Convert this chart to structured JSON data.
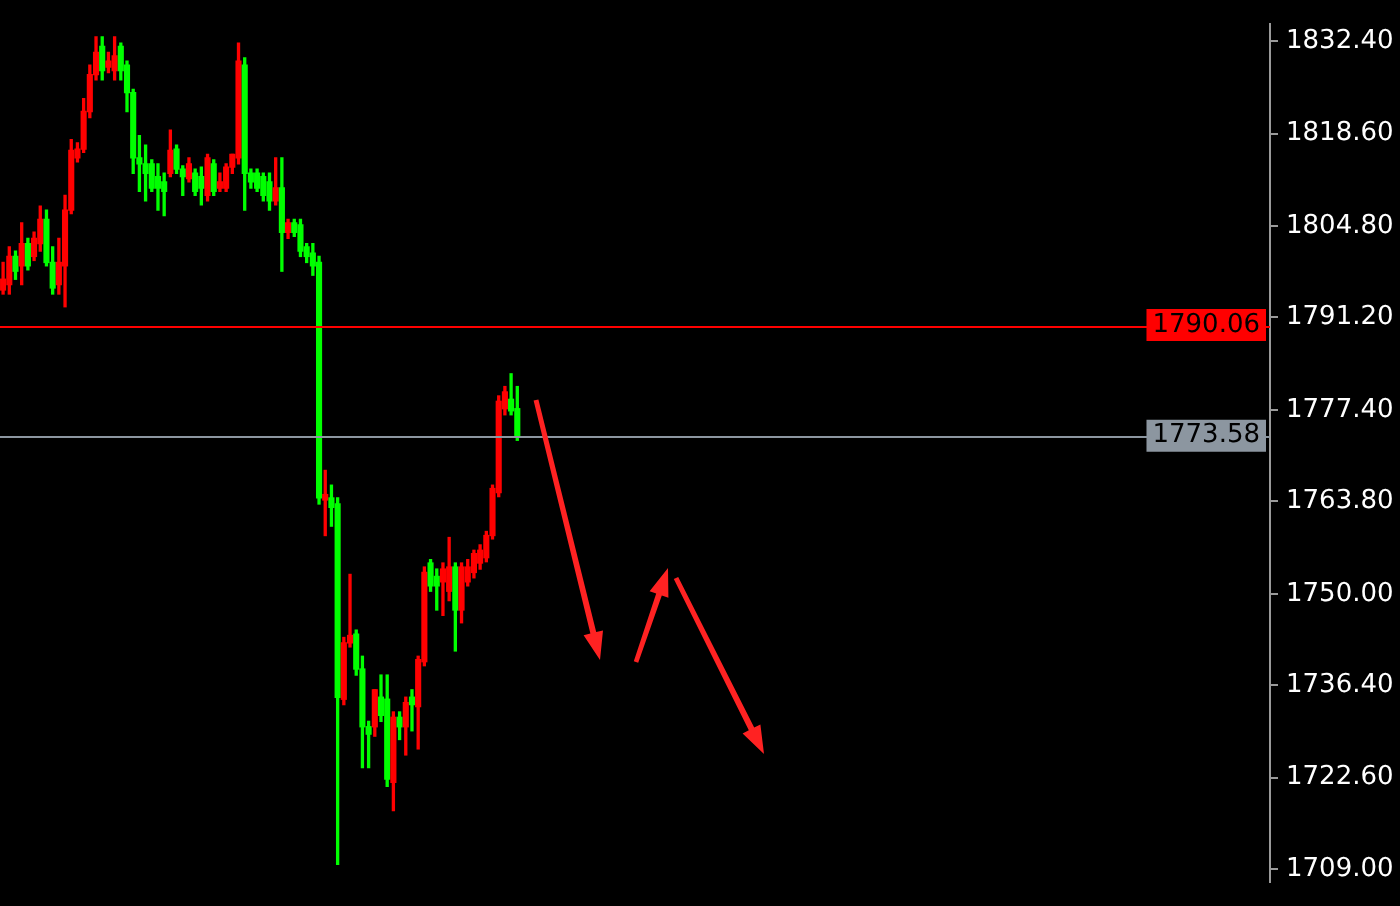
{
  "chart_data": {
    "type": "candlestick",
    "categories": [
      null,
      null,
      null,
      null,
      null,
      null,
      null,
      null,
      null,
      null,
      null,
      null,
      null,
      null,
      null,
      null,
      null,
      null,
      null,
      null,
      null,
      null,
      null,
      null,
      null,
      null,
      null,
      null,
      null,
      null,
      null,
      null,
      null,
      null,
      null,
      null,
      null,
      null,
      null,
      null,
      null,
      null,
      null,
      null,
      null,
      null,
      null,
      null,
      null,
      null,
      null,
      null,
      null,
      null,
      null,
      null,
      null,
      null,
      null,
      null,
      null,
      null,
      null,
      null,
      null,
      null,
      null,
      null,
      null,
      null,
      null,
      null,
      null,
      null,
      null,
      null,
      null,
      null,
      null,
      null,
      null,
      null,
      null,
      null,
      null,
      null,
      null,
      null,
      null,
      null,
      null,
      null,
      null,
      null,
      null,
      null,
      null,
      null,
      null,
      null,
      null,
      null,
      null,
      null,
      null,
      null,
      null,
      null,
      null,
      null,
      null,
      null,
      null,
      null,
      null,
      null,
      null,
      null,
      null,
      null,
      null,
      null,
      null,
      null,
      null,
      null,
      null,
      null,
      null,
      null,
      null,
      null,
      null,
      null,
      null,
      null,
      null,
      null,
      null,
      null,
      null,
      null,
      null,
      null,
      null,
      null,
      null,
      null,
      null,
      null,
      null,
      null,
      null,
      null,
      null,
      null,
      null,
      null,
      null,
      null,
      null,
      null,
      null,
      null,
      null,
      null,
      null,
      null,
      null,
      null,
      null,
      null,
      null,
      null,
      null,
      null,
      null,
      null,
      null,
      null,
      null,
      null,
      null,
      null,
      null,
      null,
      null,
      null,
      null,
      null,
      null,
      null,
      null,
      null,
      null,
      null,
      null,
      null,
      null,
      null,
      null,
      null,
      null,
      null,
      null
    ],
    "ohlc": [
      [
        1795.3,
        1799.4,
        1794.7,
        1796.9
      ],
      [
        1796.1,
        1801.7,
        1794.7,
        1800.3
      ],
      [
        1800.3,
        1801.1,
        1796.9,
        1798.1
      ],
      [
        1798.9,
        1805.3,
        1796.1,
        1802.2
      ],
      [
        1802.2,
        1803.0,
        1798.3,
        1798.9
      ],
      [
        1800.3,
        1803.9,
        1799.7,
        1803.0
      ],
      [
        1802.2,
        1807.8,
        1801.1,
        1805.8
      ],
      [
        1805.8,
        1807.2,
        1798.9,
        1799.4
      ],
      [
        1799.4,
        1801.7,
        1794.7,
        1795.6
      ],
      [
        1796.1,
        1803.0,
        1794.7,
        1799.4
      ],
      [
        1798.9,
        1809.4,
        1792.8,
        1807.2
      ],
      [
        1807.2,
        1817.7,
        1806.7,
        1816.1
      ],
      [
        1815.0,
        1817.2,
        1814.4,
        1816.3
      ],
      [
        1816.3,
        1823.8,
        1815.8,
        1821.9
      ],
      [
        1821.9,
        1828.8,
        1821.0,
        1827.4
      ],
      [
        1827.4,
        1833.0,
        1826.6,
        1830.7
      ],
      [
        1831.6,
        1833.0,
        1826.6,
        1828.0
      ],
      [
        1828.5,
        1830.7,
        1827.7,
        1829.4
      ],
      [
        1828.0,
        1833.0,
        1826.6,
        1830.2
      ],
      [
        1831.6,
        1832.1,
        1826.6,
        1828.0
      ],
      [
        1828.8,
        1829.4,
        1821.9,
        1824.7
      ],
      [
        1824.7,
        1825.2,
        1812.7,
        1815.0
      ],
      [
        1815.0,
        1818.3,
        1810.0,
        1814.1
      ],
      [
        1814.1,
        1816.9,
        1808.6,
        1812.7
      ],
      [
        1814.1,
        1814.7,
        1810.0,
        1810.5
      ],
      [
        1812.2,
        1814.1,
        1807.2,
        1810.5
      ],
      [
        1811.4,
        1812.7,
        1806.4,
        1810.0
      ],
      [
        1812.7,
        1819.1,
        1812.2,
        1816.1
      ],
      [
        1816.3,
        1816.9,
        1812.7,
        1813.3
      ],
      [
        1813.3,
        1813.8,
        1809.4,
        1812.2
      ],
      [
        1811.9,
        1815.0,
        1811.4,
        1814.1
      ],
      [
        1812.7,
        1813.3,
        1809.4,
        1810.0
      ],
      [
        1812.2,
        1813.6,
        1808.0,
        1810.5
      ],
      [
        1809.4,
        1815.5,
        1808.6,
        1815.0
      ],
      [
        1814.1,
        1814.7,
        1809.4,
        1810.0
      ],
      [
        1810.5,
        1812.7,
        1810.0,
        1811.4
      ],
      [
        1810.5,
        1814.1,
        1810.0,
        1813.6
      ],
      [
        1813.6,
        1815.5,
        1812.7,
        1815.5
      ],
      [
        1815.0,
        1832.1,
        1814.1,
        1829.4
      ],
      [
        1828.8,
        1829.9,
        1807.2,
        1812.7
      ],
      [
        1812.7,
        1813.3,
        1810.5,
        1811.4
      ],
      [
        1812.7,
        1813.3,
        1810.0,
        1810.5
      ],
      [
        1812.2,
        1812.7,
        1808.6,
        1809.4
      ],
      [
        1811.4,
        1812.7,
        1807.2,
        1808.6
      ],
      [
        1808.6,
        1815.0,
        1808.0,
        1810.5
      ],
      [
        1810.5,
        1815.0,
        1798.1,
        1803.9
      ],
      [
        1803.9,
        1805.8,
        1803.0,
        1805.3
      ],
      [
        1805.3,
        1805.8,
        1803.3,
        1803.9
      ],
      [
        1805.0,
        1805.8,
        1800.3,
        1801.1
      ],
      [
        1801.7,
        1802.2,
        1799.4,
        1800.3
      ],
      [
        1800.8,
        1802.2,
        1797.5,
        1798.9
      ],
      [
        1799.4,
        1800.3,
        1763.4,
        1764.3
      ],
      [
        1764.0,
        1768.4,
        1758.7,
        1764.8
      ],
      [
        1764.3,
        1766.2,
        1760.1,
        1762.9
      ],
      [
        1763.4,
        1764.3,
        1709.7,
        1734.6
      ],
      [
        1734.3,
        1743.5,
        1733.5,
        1742.7
      ],
      [
        1742.7,
        1752.9,
        1742.1,
        1743.8
      ],
      [
        1744.0,
        1744.6,
        1737.9,
        1738.8
      ],
      [
        1738.8,
        1740.7,
        1724.1,
        1730.2
      ],
      [
        1730.2,
        1731.0,
        1724.1,
        1729.1
      ],
      [
        1730.2,
        1735.7,
        1728.8,
        1735.7
      ],
      [
        1734.6,
        1737.9,
        1731.0,
        1731.9
      ],
      [
        1734.3,
        1737.9,
        1721.3,
        1722.4
      ],
      [
        1721.9,
        1732.4,
        1717.7,
        1731.6
      ],
      [
        1731.6,
        1732.4,
        1728.3,
        1730.2
      ],
      [
        1730.2,
        1734.6,
        1726.0,
        1733.8
      ],
      [
        1734.6,
        1735.7,
        1729.6,
        1733.5
      ],
      [
        1733.2,
        1740.7,
        1726.9,
        1740.2
      ],
      [
        1739.9,
        1754.0,
        1739.3,
        1753.2
      ],
      [
        1754.6,
        1755.1,
        1750.4,
        1751.2
      ],
      [
        1752.6,
        1753.7,
        1747.6,
        1751.2
      ],
      [
        1751.8,
        1754.6,
        1746.8,
        1753.7
      ],
      [
        1750.4,
        1758.4,
        1749.0,
        1754.0
      ],
      [
        1754.0,
        1754.6,
        1741.5,
        1747.6
      ],
      [
        1747.6,
        1754.6,
        1745.7,
        1754.0
      ],
      [
        1751.8,
        1755.1,
        1751.2,
        1754.0
      ],
      [
        1753.2,
        1756.5,
        1752.4,
        1756.0
      ],
      [
        1754.6,
        1757.3,
        1753.7,
        1756.5
      ],
      [
        1755.4,
        1759.3,
        1754.8,
        1758.7
      ],
      [
        1758.7,
        1766.2,
        1758.2,
        1765.7
      ],
      [
        1765.1,
        1779.5,
        1764.5,
        1778.7
      ],
      [
        1777.6,
        1780.9,
        1776.7,
        1780.1
      ],
      [
        1779.0,
        1782.8,
        1776.7,
        1777.3
      ],
      [
        1777.6,
        1780.9,
        1772.9,
        1773.4
      ],
      null,
      null,
      null,
      null,
      null,
      null,
      null,
      null,
      null,
      null,
      null,
      null,
      null,
      null,
      null,
      null,
      null,
      null,
      null,
      null,
      null,
      null,
      null,
      null,
      null,
      null,
      null,
      null,
      null,
      null,
      null,
      null,
      null,
      null,
      null,
      null,
      null,
      null,
      null,
      null,
      null,
      null,
      null,
      null,
      null,
      null,
      null,
      null,
      null,
      null,
      null,
      null,
      null,
      null,
      null,
      null,
      null,
      null,
      null,
      null,
      null,
      null,
      null,
      null,
      null,
      null,
      null,
      null,
      null,
      null,
      null,
      null,
      null,
      null,
      null,
      null,
      null,
      null,
      null,
      null,
      null,
      null,
      null,
      null,
      null,
      null,
      null,
      null,
      null,
      null,
      null,
      null,
      null,
      null,
      null,
      null,
      null,
      null,
      null,
      null,
      null,
      null,
      null,
      null,
      null,
      null,
      null,
      null,
      null,
      null,
      null,
      null,
      null,
      null,
      null,
      null,
      null,
      null,
      null,
      null,
      null
    ],
    "colors": [
      "#ff0000",
      "#ff0000",
      "#00ff00",
      "#ff0000",
      "#00ff00",
      "#ff0000",
      "#ff0000",
      "#00ff00",
      "#00ff00",
      "#ff0000",
      "#ff0000",
      "#ff0000",
      "#ff0000",
      "#ff0000",
      "#ff0000",
      "#ff0000",
      "#00ff00",
      "#ff0000",
      "#ff0000",
      "#00ff00",
      "#00ff00",
      "#00ff00",
      "#00ff00",
      "#00ff00",
      "#00ff00",
      "#00ff00",
      "#00ff00",
      "#ff0000",
      "#00ff00",
      "#00ff00",
      "#ff0000",
      "#00ff00",
      "#00ff00",
      "#ff0000",
      "#00ff00",
      "#ff0000",
      "#ff0000",
      "#ff0000",
      "#ff0000",
      "#00ff00",
      "#00ff00",
      "#00ff00",
      "#00ff00",
      "#00ff00",
      "#ff0000",
      "#00ff00",
      "#ff0000",
      "#00ff00",
      "#00ff00",
      "#00ff00",
      "#00ff00",
      "#00ff00",
      "#ff0000",
      "#00ff00",
      "#00ff00",
      "#ff0000",
      "#ff0000",
      "#00ff00",
      "#00ff00",
      "#00ff00",
      "#ff0000",
      "#00ff00",
      "#00ff00",
      "#ff0000",
      "#00ff00",
      "#ff0000",
      "#00ff00",
      "#ff0000",
      "#ff0000",
      "#00ff00",
      "#00ff00",
      "#ff0000",
      "#ff0000",
      "#00ff00",
      "#ff0000",
      "#ff0000",
      "#ff0000",
      "#ff0000",
      "#ff0000",
      "#ff0000",
      "#ff0000",
      "#ff0000",
      "#00ff00",
      "#00ff00",
      null,
      null,
      null,
      null,
      null,
      null,
      null,
      null,
      null,
      null,
      null,
      null,
      null,
      null,
      null,
      null,
      null,
      null,
      null,
      null,
      null,
      null,
      null,
      null,
      null,
      null,
      null,
      null,
      null,
      null,
      null,
      null,
      null,
      null,
      null,
      null,
      null,
      null,
      null,
      null,
      null,
      null,
      null,
      null,
      null,
      null,
      null,
      null,
      null,
      null,
      null,
      null,
      null,
      null,
      null,
      null,
      null,
      null,
      null,
      null,
      null,
      null,
      null,
      null,
      null,
      null,
      null,
      null,
      null,
      null,
      null,
      null,
      null,
      null,
      null,
      null,
      null,
      null,
      null,
      null,
      null,
      null,
      null,
      null,
      null,
      null,
      null,
      null,
      null,
      null,
      null,
      null,
      null,
      null,
      null,
      null,
      null,
      null,
      null,
      null,
      null,
      null,
      null,
      null,
      null,
      null,
      null,
      null,
      null,
      null,
      null,
      null,
      null,
      null,
      null,
      null,
      null,
      null,
      null,
      null,
      null
    ],
    "ylim": [
      1707,
      1835
    ],
    "yticks": [
      {
        "value": 1832.4,
        "label": "1832.40"
      },
      {
        "value": 1818.6,
        "label": "1818.60"
      },
      {
        "value": 1804.8,
        "label": "1804.80"
      },
      {
        "value": 1791.2,
        "label": "1791.20"
      },
      {
        "value": 1777.4,
        "label": "1777.40"
      },
      {
        "value": 1763.8,
        "label": "1763.80"
      },
      {
        "value": 1750,
        "label": "1750.00"
      },
      {
        "value": 1736.4,
        "label": "1736.40"
      },
      {
        "value": 1722.6,
        "label": "1722.60"
      },
      {
        "value": 1709,
        "label": "1709.00"
      }
    ],
    "tick_labels": "y",
    "ref_lines": [
      {
        "axis": "y",
        "value": 1790.06,
        "label": "1790.06",
        "color": "#ff0000"
      },
      {
        "axis": "y",
        "value": 1773.58,
        "label": "1773.58",
        "color": "#8c96a0"
      }
    ]
  }
}
